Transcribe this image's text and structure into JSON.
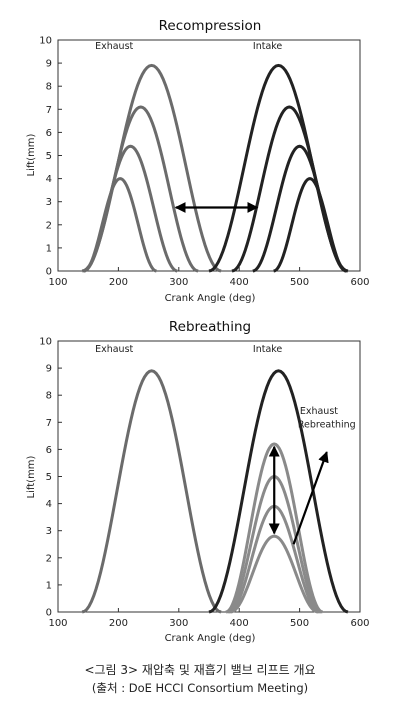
{
  "caption": {
    "line1": "<그림 3> 재압축 및 재흡기 밸브 리프트 개요",
    "line2": "(출처 : DoE HCCI Consortium Meeting)"
  },
  "colors": {
    "exhaust": "#6b6b6b",
    "intake": "#222222",
    "rebreathing": "#8a8a8a",
    "arrow": "#000000"
  },
  "chart_data": [
    {
      "type": "line",
      "title": "Recompression",
      "xlabel": "Crank Angle (deg)",
      "ylabel": "Lift(mm)",
      "xlim": [
        100,
        600
      ],
      "ylim": [
        0,
        10
      ],
      "xticks": [
        100,
        200,
        300,
        400,
        500,
        600
      ],
      "yticks": [
        0,
        1,
        2,
        3,
        4,
        5,
        6,
        7,
        8,
        9,
        10
      ],
      "grid": false,
      "series": [
        {
          "group": "exhaust",
          "center": 255,
          "lift": 8.9,
          "duration": 230
        },
        {
          "group": "exhaust",
          "center": 237,
          "lift": 7.1,
          "duration": 190
        },
        {
          "group": "exhaust",
          "center": 220,
          "lift": 5.4,
          "duration": 155
        },
        {
          "group": "exhaust",
          "center": 203,
          "lift": 4.0,
          "duration": 120
        },
        {
          "group": "intake",
          "center": 465,
          "lift": 8.9,
          "duration": 230
        },
        {
          "group": "intake",
          "center": 483,
          "lift": 7.1,
          "duration": 190
        },
        {
          "group": "intake",
          "center": 500,
          "lift": 5.4,
          "duration": 155
        },
        {
          "group": "intake",
          "center": 517,
          "lift": 4.0,
          "duration": 120
        }
      ],
      "annotations": [
        {
          "text": "Exhaust",
          "x": 193,
          "y": 9.6
        },
        {
          "text": "Intake",
          "x": 447,
          "y": 9.6
        }
      ],
      "arrows": [
        {
          "type": "double",
          "x1": 295,
          "y1": 2.75,
          "x2": 430,
          "y2": 2.75
        }
      ]
    },
    {
      "type": "line",
      "title": "Rebreathing",
      "xlabel": "Crank Angle (deg)",
      "ylabel": "Lift(mm)",
      "xlim": [
        100,
        600
      ],
      "ylim": [
        0,
        10
      ],
      "xticks": [
        100,
        200,
        300,
        400,
        500,
        600
      ],
      "yticks": [
        0,
        1,
        2,
        3,
        4,
        5,
        6,
        7,
        8,
        9,
        10
      ],
      "grid": false,
      "series": [
        {
          "group": "exhaust",
          "center": 255,
          "lift": 8.9,
          "duration": 230
        },
        {
          "group": "intake",
          "center": 465,
          "lift": 8.9,
          "duration": 230
        },
        {
          "group": "rebreathing",
          "center": 458,
          "lift": 6.2,
          "duration": 160
        },
        {
          "group": "rebreathing",
          "center": 458,
          "lift": 5.0,
          "duration": 155
        },
        {
          "group": "rebreathing",
          "center": 458,
          "lift": 3.9,
          "duration": 150
        },
        {
          "group": "rebreathing",
          "center": 458,
          "lift": 2.8,
          "duration": 145
        }
      ],
      "annotations": [
        {
          "text": "Exhaust",
          "x": 193,
          "y": 9.6
        },
        {
          "text": "Intake",
          "x": 447,
          "y": 9.6
        },
        {
          "text": "Exhaust",
          "x": 532,
          "y": 7.3
        },
        {
          "text": "Rebreathing",
          "x": 545,
          "y": 6.8
        }
      ],
      "arrows": [
        {
          "type": "double",
          "x1": 458,
          "y1": 6.1,
          "x2": 458,
          "y2": 2.9
        },
        {
          "type": "single",
          "x1": 490,
          "y1": 2.5,
          "x2": 545,
          "y2": 5.9
        }
      ]
    }
  ]
}
